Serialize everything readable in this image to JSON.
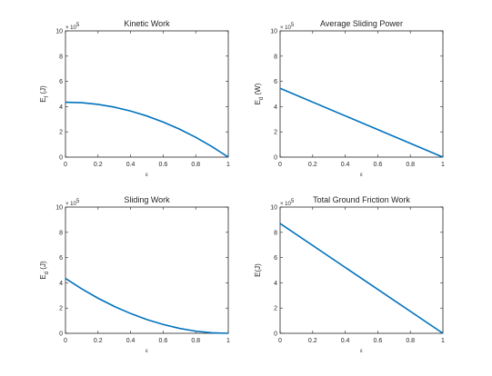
{
  "chart_data": [
    {
      "type": "line",
      "title": "Kinetic Work",
      "xlabel": "ε",
      "ylabel": {
        "main": "E",
        "sub": "f",
        "unit": "(J)"
      },
      "y_exponent_base": "× 10",
      "y_exponent": "5",
      "xlim": [
        0,
        1
      ],
      "ylim": [
        0,
        10
      ],
      "x_ticks": [
        "0",
        "0.2",
        "0.4",
        "0.6",
        "0.8",
        "1"
      ],
      "y_ticks": [
        "0",
        "2",
        "4",
        "6",
        "8",
        "10"
      ],
      "x": [
        0,
        0.1,
        0.2,
        0.3,
        0.4,
        0.5,
        0.6,
        0.7,
        0.8,
        0.9,
        1.0
      ],
      "y": [
        4.35,
        4.31,
        4.18,
        3.96,
        3.65,
        3.26,
        2.78,
        2.22,
        1.57,
        0.83,
        0.0
      ],
      "color": "#0072bd",
      "grid": false
    },
    {
      "type": "line",
      "title": "Average Sliding Power",
      "xlabel": "ε",
      "ylabel": {
        "main": "E",
        "sub": "d",
        "unit": "(W)"
      },
      "y_exponent_base": "× 10",
      "y_exponent": "5",
      "xlim": [
        0,
        1
      ],
      "ylim": [
        0,
        10
      ],
      "x_ticks": [
        "0",
        "0.2",
        "0.4",
        "0.6",
        "0.8",
        "1"
      ],
      "y_ticks": [
        "0",
        "2",
        "4",
        "6",
        "8",
        "10"
      ],
      "x": [
        0,
        1.0
      ],
      "y": [
        5.45,
        0.0
      ],
      "color": "#0072bd",
      "grid": false
    },
    {
      "type": "line",
      "title": "Sliding Work",
      "xlabel": "ε",
      "ylabel": {
        "main": "E",
        "sub": "d",
        "unit": "(J)"
      },
      "y_exponent_base": "× 10",
      "y_exponent": "5",
      "xlim": [
        0,
        1
      ],
      "ylim": [
        0,
        10
      ],
      "x_ticks": [
        "0",
        "0.2",
        "0.4",
        "0.6",
        "0.8",
        "1"
      ],
      "y_ticks": [
        "0",
        "2",
        "4",
        "6",
        "8",
        "10"
      ],
      "x": [
        0,
        0.1,
        0.2,
        0.3,
        0.4,
        0.5,
        0.6,
        0.7,
        0.8,
        0.9,
        1.0
      ],
      "y": [
        4.35,
        3.52,
        2.78,
        2.13,
        1.57,
        1.09,
        0.7,
        0.39,
        0.17,
        0.04,
        0.0
      ],
      "color": "#0072bd",
      "grid": false
    },
    {
      "type": "line",
      "title": "Total Ground Friction Work",
      "xlabel": "ε",
      "ylabel": {
        "main": "E",
        "sub": "",
        "unit": "(J)"
      },
      "y_exponent_base": "× 10",
      "y_exponent": "5",
      "xlim": [
        0,
        1
      ],
      "ylim": [
        0,
        10
      ],
      "x_ticks": [
        "0",
        "0.2",
        "0.4",
        "0.6",
        "0.8",
        "1"
      ],
      "y_ticks": [
        "0",
        "2",
        "4",
        "6",
        "8",
        "10"
      ],
      "x": [
        0,
        1.0
      ],
      "y": [
        8.7,
        0.0
      ],
      "color": "#0072bd",
      "grid": false
    }
  ]
}
